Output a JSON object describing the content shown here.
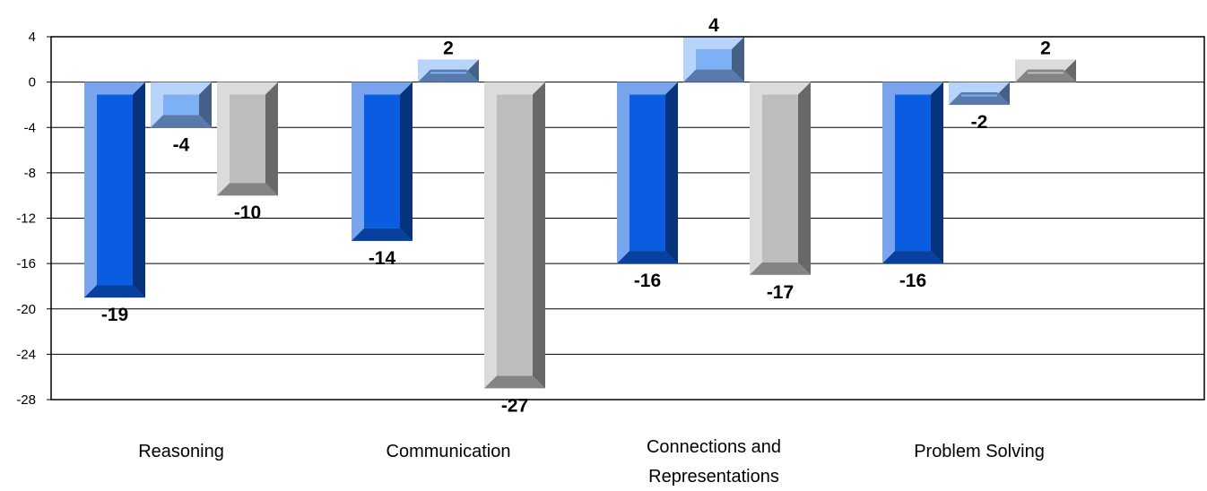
{
  "chart_data": {
    "type": "bar",
    "categories": [
      "Reasoning",
      "Communication",
      "Connections and Representations",
      "Problem Solving"
    ],
    "category_label_lines": [
      [
        "Reasoning"
      ],
      [
        "Communication"
      ],
      [
        "Connections and",
        "Representations"
      ],
      [
        "Problem Solving"
      ]
    ],
    "series": [
      {
        "values": [
          -19,
          -14,
          -16,
          -16
        ],
        "color": "#0a5ce0"
      },
      {
        "values": [
          -4,
          2,
          4,
          -2
        ],
        "color": "#7eb0f5"
      },
      {
        "values": [
          -10,
          -27,
          -17,
          2
        ],
        "color": "#bdbdbd"
      }
    ],
    "y_ticks": [
      4,
      0,
      -4,
      -8,
      -12,
      -16,
      -20,
      -24,
      -28
    ],
    "ylim": [
      -28,
      4
    ],
    "grid": true,
    "legend": "none",
    "title": "",
    "xlabel": "",
    "ylabel": ""
  }
}
